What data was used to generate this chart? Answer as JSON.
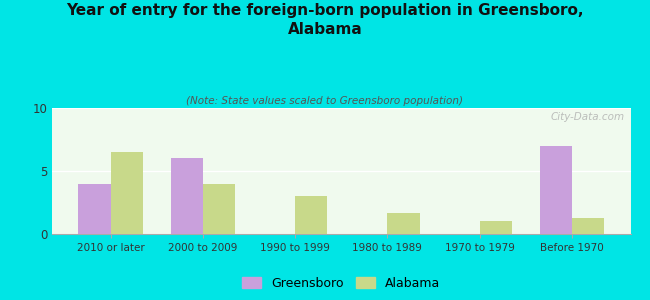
{
  "title": "Year of entry for the foreign-born population in Greensboro,\nAlabama",
  "subtitle": "(Note: State values scaled to Greensboro population)",
  "categories": [
    "2010 or later",
    "2000 to 2009",
    "1990 to 1999",
    "1980 to 1989",
    "1970 to 1979",
    "Before 1970"
  ],
  "greensboro": [
    4.0,
    6.0,
    0,
    0,
    0,
    7.0
  ],
  "alabama": [
    6.5,
    4.0,
    3.0,
    1.7,
    1.0,
    1.3
  ],
  "greensboro_color": "#c9a0dc",
  "alabama_color": "#c8d98a",
  "background_color": "#00e5e5",
  "plot_bg_color": "#f0faee",
  "ylim": [
    0,
    10
  ],
  "yticks": [
    0,
    5,
    10
  ],
  "bar_width": 0.35,
  "legend_labels": [
    "Greensboro",
    "Alabama"
  ],
  "watermark": "City-Data.com"
}
